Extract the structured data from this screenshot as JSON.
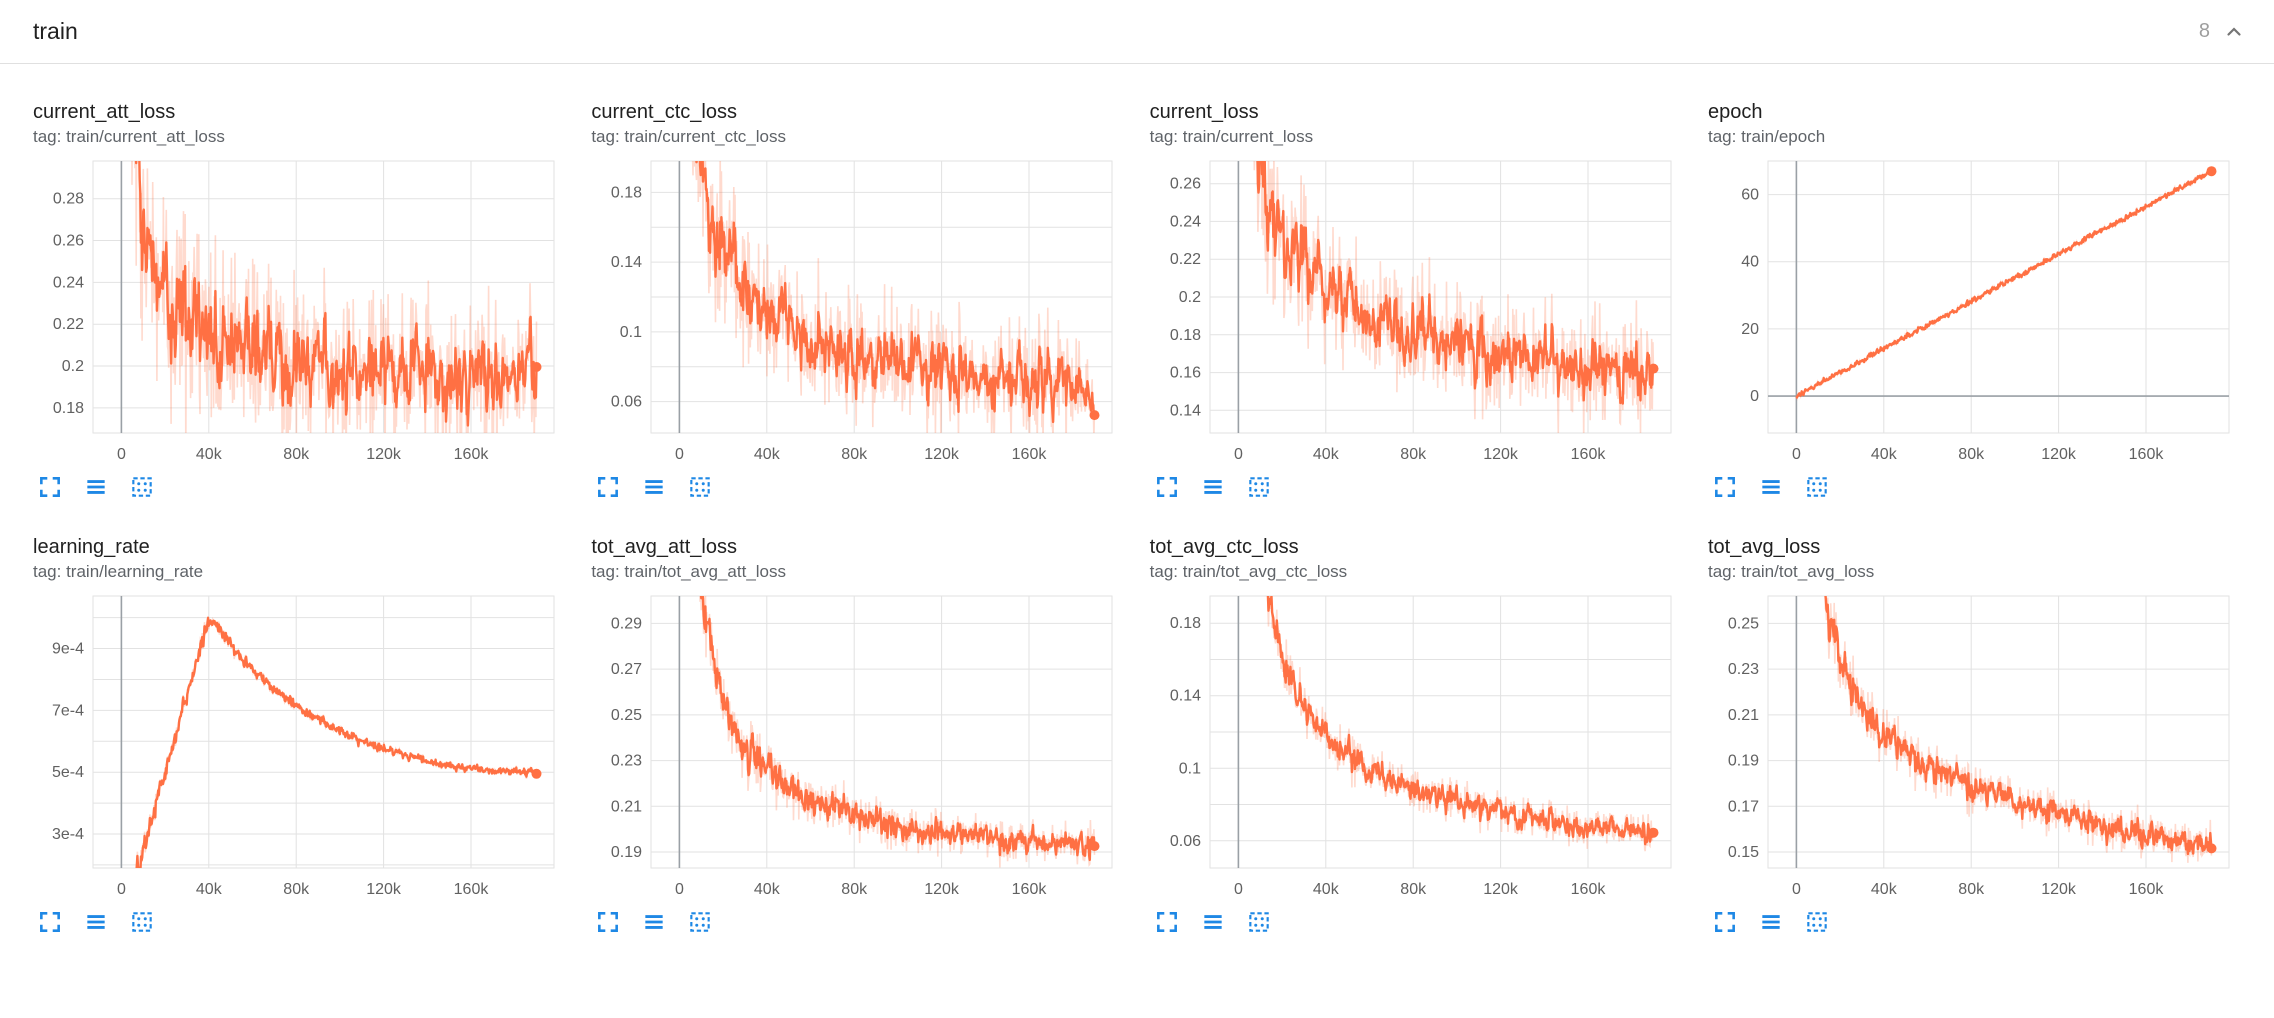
{
  "header": {
    "title": "train",
    "count": "8"
  },
  "colors": {
    "accent": "#ff7043",
    "accent_light_opacity": 0.26,
    "grid": "#e2e2e2",
    "axis": "#9aa0a6",
    "tick_text": "#616161",
    "icon_blue": "#1e88e5",
    "title_text": "#212121",
    "tag_text": "#5f6368"
  },
  "icons": {
    "collapse_section": "chevron-up",
    "expand_chart": "corner-brackets",
    "data_series": "triple-bars",
    "fit_domain": "dotted-square"
  },
  "chart_data": [
    {
      "type": "line",
      "name": "current_att_loss",
      "tag": "tag: train/current_att_loss",
      "x_range": [
        -13000,
        198000
      ],
      "x_ticks": {
        "values": [
          0,
          40000,
          80000,
          120000,
          160000
        ],
        "labels": [
          "0",
          "40k",
          "80k",
          "120k",
          "160k"
        ]
      },
      "y_range": [
        0.168,
        0.298
      ],
      "y_ticks": {
        "values": [
          0.18,
          0.2,
          0.22,
          0.24,
          0.26,
          0.28
        ],
        "labels": [
          "0.18",
          "0.2",
          "0.22",
          "0.24",
          "0.26",
          "0.28"
        ]
      },
      "y_grid": [
        0.18,
        0.2,
        0.22,
        0.24,
        0.26,
        0.28
      ],
      "trend": [
        [
          800,
          0.42
        ],
        [
          3000,
          0.34
        ],
        [
          6000,
          0.295
        ],
        [
          10000,
          0.268
        ],
        [
          15000,
          0.248
        ],
        [
          22000,
          0.232
        ],
        [
          30000,
          0.222
        ],
        [
          45000,
          0.212
        ],
        [
          60000,
          0.207
        ],
        [
          80000,
          0.203
        ],
        [
          110000,
          0.2
        ],
        [
          150000,
          0.198
        ],
        [
          190000,
          0.198
        ]
      ],
      "noise": 0.018,
      "noise_start_mult": 1.7,
      "smoothing": 0.6,
      "data_start": 800,
      "data_end": 190000,
      "end_value": 0.198
    },
    {
      "type": "line",
      "name": "current_ctc_loss",
      "tag": "tag: train/current_ctc_loss",
      "x_range": [
        -13000,
        198000
      ],
      "x_ticks": {
        "values": [
          0,
          40000,
          80000,
          120000,
          160000
        ],
        "labels": [
          "0",
          "40k",
          "80k",
          "120k",
          "160k"
        ]
      },
      "y_range": [
        0.042,
        0.198
      ],
      "y_ticks": {
        "values": [
          0.06,
          0.1,
          0.14,
          0.18
        ],
        "labels": [
          "0.06",
          "0.1",
          "0.14",
          "0.18"
        ]
      },
      "y_grid": [
        0.06,
        0.08,
        0.1,
        0.12,
        0.14,
        0.16,
        0.18
      ],
      "trend": [
        [
          800,
          0.34
        ],
        [
          3000,
          0.27
        ],
        [
          6000,
          0.225
        ],
        [
          10000,
          0.19
        ],
        [
          15000,
          0.162
        ],
        [
          22000,
          0.14
        ],
        [
          30000,
          0.124
        ],
        [
          45000,
          0.106
        ],
        [
          60000,
          0.096
        ],
        [
          80000,
          0.087
        ],
        [
          110000,
          0.079
        ],
        [
          150000,
          0.072
        ],
        [
          190000,
          0.068
        ]
      ],
      "noise": 0.016,
      "noise_start_mult": 1.7,
      "smoothing": 0.6,
      "data_start": 800,
      "data_end": 190000,
      "end_value": 0.068
    },
    {
      "type": "line",
      "name": "current_loss",
      "tag": "tag: train/current_loss",
      "x_range": [
        -13000,
        198000
      ],
      "x_ticks": {
        "values": [
          0,
          40000,
          80000,
          120000,
          160000
        ],
        "labels": [
          "0",
          "40k",
          "80k",
          "120k",
          "160k"
        ]
      },
      "y_range": [
        0.128,
        0.272
      ],
      "y_ticks": {
        "values": [
          0.14,
          0.16,
          0.18,
          0.2,
          0.22,
          0.24,
          0.26
        ],
        "labels": [
          "0.14",
          "0.16",
          "0.18",
          "0.2",
          "0.22",
          "0.24",
          "0.26"
        ]
      },
      "y_grid": [
        0.14,
        0.16,
        0.18,
        0.2,
        0.22,
        0.24,
        0.26
      ],
      "trend": [
        [
          800,
          0.42
        ],
        [
          3000,
          0.34
        ],
        [
          6000,
          0.3
        ],
        [
          10000,
          0.27
        ],
        [
          15000,
          0.246
        ],
        [
          22000,
          0.228
        ],
        [
          30000,
          0.214
        ],
        [
          45000,
          0.199
        ],
        [
          60000,
          0.19
        ],
        [
          80000,
          0.182
        ],
        [
          110000,
          0.173
        ],
        [
          150000,
          0.166
        ],
        [
          190000,
          0.16
        ]
      ],
      "noise": 0.015,
      "noise_start_mult": 1.7,
      "smoothing": 0.6,
      "data_start": 800,
      "data_end": 190000,
      "end_value": 0.16
    },
    {
      "type": "line",
      "name": "epoch",
      "tag": "tag: train/epoch",
      "x_range": [
        -13000,
        198000
      ],
      "x_ticks": {
        "values": [
          0,
          40000,
          80000,
          120000,
          160000
        ],
        "labels": [
          "0",
          "40k",
          "80k",
          "120k",
          "160k"
        ]
      },
      "y_range": [
        -11,
        70
      ],
      "y_ticks": {
        "values": [
          0,
          20,
          40,
          60
        ],
        "labels": [
          "0",
          "20",
          "40",
          "60"
        ]
      },
      "y_grid": [
        0,
        20,
        40,
        60
      ],
      "trend": [
        [
          0,
          0
        ],
        [
          190000,
          67
        ]
      ],
      "noise": 0.5,
      "noise_start_mult": 1,
      "smoothing": 0.3,
      "data_start": 0,
      "data_end": 190000,
      "end_value": 67
    },
    {
      "type": "line",
      "name": "learning_rate",
      "tag": "tag: train/learning_rate",
      "x_range": [
        -13000,
        198000
      ],
      "x_ticks": {
        "values": [
          0,
          40000,
          80000,
          120000,
          160000
        ],
        "labels": [
          "0",
          "40k",
          "80k",
          "120k",
          "160k"
        ]
      },
      "y_range": [
        0.00019,
        0.00107
      ],
      "y_ticks": {
        "values": [
          0.0003,
          0.0005,
          0.0007,
          0.0009
        ],
        "labels": [
          "3e-4",
          "5e-4",
          "7e-4",
          "9e-4"
        ]
      },
      "y_grid": [
        0.0002,
        0.0003,
        0.0004,
        0.0005,
        0.0006,
        0.0007,
        0.0008,
        0.0009,
        0.001
      ],
      "trend": [
        [
          0,
          2e-05
        ],
        [
          8000,
          0.0002
        ],
        [
          16000,
          0.0004
        ],
        [
          24000,
          0.0006
        ],
        [
          30000,
          0.00075
        ],
        [
          35000,
          0.00088
        ],
        [
          38500,
          0.00096
        ],
        [
          40000,
          0.000995
        ],
        [
          42000,
          0.000985
        ],
        [
          48000,
          0.00093
        ],
        [
          56000,
          0.00086
        ],
        [
          68000,
          0.00078
        ],
        [
          80000,
          0.000715
        ],
        [
          95000,
          0.00065
        ],
        [
          110000,
          0.0006
        ],
        [
          130000,
          0.000555
        ],
        [
          150000,
          0.00052
        ],
        [
          170000,
          0.000505
        ],
        [
          190000,
          0.0005
        ]
      ],
      "noise": 8e-06,
      "noise_start_mult": 3,
      "smoothing": 0.3,
      "data_start": 0,
      "data_end": 190000,
      "end_value": 0.0005
    },
    {
      "type": "line",
      "name": "tot_avg_att_loss",
      "tag": "tag: train/tot_avg_att_loss",
      "x_range": [
        -13000,
        198000
      ],
      "x_ticks": {
        "values": [
          0,
          40000,
          80000,
          120000,
          160000
        ],
        "labels": [
          "0",
          "40k",
          "80k",
          "120k",
          "160k"
        ]
      },
      "y_range": [
        0.183,
        0.302
      ],
      "y_ticks": {
        "values": [
          0.19,
          0.21,
          0.23,
          0.25,
          0.27,
          0.29
        ],
        "labels": [
          "0.19",
          "0.21",
          "0.23",
          "0.25",
          "0.27",
          "0.29"
        ]
      },
      "y_grid": [
        0.19,
        0.21,
        0.23,
        0.25,
        0.27,
        0.29
      ],
      "trend": [
        [
          800,
          0.46
        ],
        [
          3000,
          0.4
        ],
        [
          6000,
          0.35
        ],
        [
          10000,
          0.305
        ],
        [
          15000,
          0.273
        ],
        [
          22000,
          0.249
        ],
        [
          30000,
          0.235
        ],
        [
          45000,
          0.221
        ],
        [
          60000,
          0.213
        ],
        [
          80000,
          0.206
        ],
        [
          110000,
          0.199
        ],
        [
          150000,
          0.195
        ],
        [
          190000,
          0.193
        ]
      ],
      "noise": 0.0045,
      "noise_start_mult": 2,
      "smoothing": 0.5,
      "data_start": 800,
      "data_end": 190000,
      "end_value": 0.193
    },
    {
      "type": "line",
      "name": "tot_avg_ctc_loss",
      "tag": "tag: train/tot_avg_ctc_loss",
      "x_range": [
        -13000,
        198000
      ],
      "x_ticks": {
        "values": [
          0,
          40000,
          80000,
          120000,
          160000
        ],
        "labels": [
          "0",
          "40k",
          "80k",
          "120k",
          "160k"
        ]
      },
      "y_range": [
        0.045,
        0.195
      ],
      "y_ticks": {
        "values": [
          0.06,
          0.1,
          0.14,
          0.18
        ],
        "labels": [
          "0.06",
          "0.1",
          "0.14",
          "0.18"
        ]
      },
      "y_grid": [
        0.06,
        0.08,
        0.1,
        0.12,
        0.14,
        0.16,
        0.18
      ],
      "trend": [
        [
          800,
          0.38
        ],
        [
          3000,
          0.32
        ],
        [
          6000,
          0.27
        ],
        [
          10000,
          0.225
        ],
        [
          15000,
          0.186
        ],
        [
          22000,
          0.155
        ],
        [
          30000,
          0.133
        ],
        [
          45000,
          0.111
        ],
        [
          60000,
          0.099
        ],
        [
          80000,
          0.088
        ],
        [
          110000,
          0.078
        ],
        [
          150000,
          0.069
        ],
        [
          190000,
          0.064
        ]
      ],
      "noise": 0.005,
      "noise_start_mult": 2,
      "smoothing": 0.5,
      "data_start": 800,
      "data_end": 190000,
      "end_value": 0.064
    },
    {
      "type": "line",
      "name": "tot_avg_loss",
      "tag": "tag: train/tot_avg_loss",
      "x_range": [
        -13000,
        198000
      ],
      "x_ticks": {
        "values": [
          0,
          40000,
          80000,
          120000,
          160000
        ],
        "labels": [
          "0",
          "40k",
          "80k",
          "120k",
          "160k"
        ]
      },
      "y_range": [
        0.143,
        0.262
      ],
      "y_ticks": {
        "values": [
          0.15,
          0.17,
          0.19,
          0.21,
          0.23,
          0.25
        ],
        "labels": [
          "0.15",
          "0.17",
          "0.19",
          "0.21",
          "0.23",
          "0.25"
        ]
      },
      "y_grid": [
        0.15,
        0.17,
        0.19,
        0.21,
        0.23,
        0.25
      ],
      "trend": [
        [
          800,
          0.43
        ],
        [
          3000,
          0.37
        ],
        [
          6000,
          0.32
        ],
        [
          10000,
          0.28
        ],
        [
          15000,
          0.251
        ],
        [
          22000,
          0.228
        ],
        [
          30000,
          0.212
        ],
        [
          45000,
          0.197
        ],
        [
          60000,
          0.188
        ],
        [
          80000,
          0.179
        ],
        [
          110000,
          0.169
        ],
        [
          150000,
          0.159
        ],
        [
          190000,
          0.153
        ]
      ],
      "noise": 0.0045,
      "noise_start_mult": 2,
      "smoothing": 0.5,
      "data_start": 800,
      "data_end": 190000,
      "end_value": 0.153
    }
  ]
}
